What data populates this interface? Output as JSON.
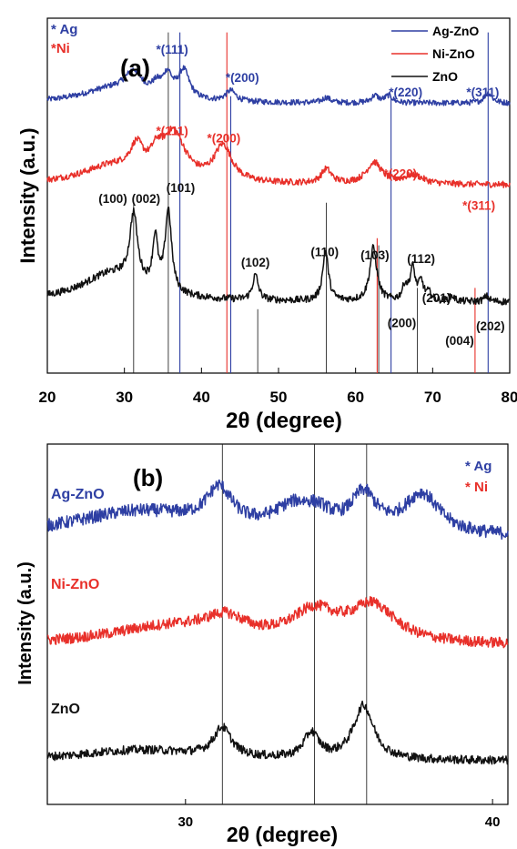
{
  "chart_data": [
    {
      "panel_label": "(a)",
      "type": "line",
      "xlabel": "2θ (degree)",
      "ylabel": "Intensity (a.u.)",
      "xlim": [
        20,
        80
      ],
      "xticks": [
        20,
        30,
        40,
        50,
        60,
        70,
        80
      ],
      "marker_legend": [
        {
          "text": "* Ag",
          "color": "#2e3fa3"
        },
        {
          "text": "*Ni",
          "color": "#e8302a"
        }
      ],
      "legend": {
        "placement": "top-right",
        "entries": [
          {
            "name": "Ag-ZnO",
            "color": "#2e3fa3"
          },
          {
            "name": "Ni-ZnO",
            "color": "#e8302a"
          },
          {
            "name": "ZnO",
            "color": "#111111"
          }
        ]
      },
      "series": [
        {
          "name": "Ag-ZnO",
          "color": "#2e3fa3",
          "baseline": 0.76,
          "noise": 0.008,
          "peaks": [
            [
              28.5,
              0.04,
              5
            ],
            [
              31.2,
              0.06,
              1.3
            ],
            [
              34.2,
              0.03,
              0.8
            ],
            [
              35.6,
              0.06,
              0.7
            ],
            [
              37.7,
              0.08,
              0.9
            ],
            [
              43.8,
              0.03,
              0.8
            ],
            [
              56.2,
              0.015,
              0.6
            ],
            [
              62.5,
              0.02,
              0.6
            ],
            [
              64.3,
              0.02,
              0.6
            ],
            [
              77.2,
              0.03,
              0.6
            ]
          ]
        },
        {
          "name": "Ni-ZnO",
          "color": "#e8302a",
          "baseline": 0.53,
          "noise": 0.009,
          "peaks": [
            [
              28.5,
              0.05,
              5
            ],
            [
              31.6,
              0.07,
              1.0
            ],
            [
              34.2,
              0.05,
              0.9
            ],
            [
              36.4,
              0.13,
              1.8
            ],
            [
              42.8,
              0.1,
              1.4
            ],
            [
              56.2,
              0.04,
              0.8
            ],
            [
              62.4,
              0.06,
              1.2
            ],
            [
              67.5,
              0.025,
              1.5
            ]
          ]
        },
        {
          "name": "ZnO",
          "color": "#111111",
          "baseline": 0.2,
          "noise": 0.01,
          "peaks": [
            [
              28.5,
              0.08,
              5
            ],
            [
              31.2,
              0.19,
              0.6
            ],
            [
              34.0,
              0.14,
              0.4
            ],
            [
              35.7,
              0.23,
              0.5
            ],
            [
              47.0,
              0.07,
              0.45
            ],
            [
              56.1,
              0.14,
              0.45
            ],
            [
              62.3,
              0.15,
              0.55
            ],
            [
              66.4,
              0.04,
              0.4
            ],
            [
              67.4,
              0.09,
              0.4
            ],
            [
              68.5,
              0.05,
              0.4
            ],
            [
              69.5,
              0.02,
              0.4
            ],
            [
              72.5,
              0.015,
              0.4
            ],
            [
              77.0,
              0.015,
              0.4
            ]
          ]
        }
      ],
      "reference_lines": [
        {
          "x": 31.2,
          "color": "#111111",
          "height": 0.48
        },
        {
          "x": 35.7,
          "color": "#111111",
          "height": 0.96
        },
        {
          "x": 37.2,
          "color": "#2e3fa3",
          "height": 0.96
        },
        {
          "x": 43.3,
          "color": "#e8302a",
          "height": 0.96
        },
        {
          "x": 43.8,
          "color": "#2e3fa3",
          "height": 0.78
        },
        {
          "x": 47.3,
          "color": "#111111",
          "height": 0.18
        },
        {
          "x": 56.2,
          "color": "#111111",
          "height": 0.48
        },
        {
          "x": 62.8,
          "color": "#e8302a",
          "height": 0.38
        },
        {
          "x": 63.0,
          "color": "#111111",
          "height": 0.36
        },
        {
          "x": 64.6,
          "color": "#2e3fa3",
          "height": 0.78
        },
        {
          "x": 68.0,
          "color": "#111111",
          "height": 0.24
        },
        {
          "x": 75.5,
          "color": "#e8302a",
          "height": 0.24
        },
        {
          "x": 77.2,
          "color": "#2e3fa3",
          "height": 0.96
        }
      ],
      "annotations": [
        {
          "text": "*(111)",
          "color": "#2e3fa3",
          "x": 36.2,
          "y": 0.9
        },
        {
          "text": "*(200)",
          "color": "#2e3fa3",
          "x": 45.3,
          "y": 0.82
        },
        {
          "text": "*(220)",
          "color": "#2e3fa3",
          "x": 66.5,
          "y": 0.78
        },
        {
          "text": "*(311)",
          "color": "#2e3fa3",
          "x": 76.5,
          "y": 0.78
        },
        {
          "text": "*(111)",
          "color": "#e8302a",
          "x": 36.2,
          "y": 0.67
        },
        {
          "text": "*(200)",
          "color": "#e8302a",
          "x": 42.9,
          "y": 0.65
        },
        {
          "text": "*(220)",
          "color": "#e8302a",
          "x": 65.8,
          "y": 0.55
        },
        {
          "text": "*(311)",
          "color": "#e8302a",
          "x": 76.0,
          "y": 0.46
        },
        {
          "text": "(100)",
          "color": "#111111",
          "x": 28.5,
          "y": 0.48
        },
        {
          "text": "(002)",
          "color": "#111111",
          "x": 32.8,
          "y": 0.48
        },
        {
          "text": "(101)",
          "color": "#111111",
          "x": 37.3,
          "y": 0.51
        },
        {
          "text": "(102)",
          "color": "#111111",
          "x": 47.0,
          "y": 0.3
        },
        {
          "text": "(110)",
          "color": "#111111",
          "x": 56.0,
          "y": 0.33
        },
        {
          "text": "(103)",
          "color": "#111111",
          "x": 62.5,
          "y": 0.32
        },
        {
          "text": "(112)",
          "color": "#111111",
          "x": 68.5,
          "y": 0.31
        },
        {
          "text": "(200)",
          "color": "#111111",
          "x": 66.0,
          "y": 0.13
        },
        {
          "text": "(201)",
          "color": "#111111",
          "x": 70.5,
          "y": 0.2
        },
        {
          "text": "(004)",
          "color": "#111111",
          "x": 73.5,
          "y": 0.08
        },
        {
          "text": "(202)",
          "color": "#111111",
          "x": 77.5,
          "y": 0.12
        }
      ]
    },
    {
      "panel_label": "(b)",
      "type": "line",
      "xlabel": "2θ (degree)",
      "ylabel": "Intensity (a.u.)",
      "xlim": [
        25.5,
        40.5
      ],
      "xticks": [
        30,
        40
      ],
      "marker_legend": [
        {
          "text": "* Ag",
          "color": "#2e3fa3"
        },
        {
          "text": "* Ni",
          "color": "#e8302a"
        }
      ],
      "series_labels": [
        {
          "text": "Ag-ZnO",
          "color": "#2e3fa3"
        },
        {
          "text": "Ni-ZnO",
          "color": "#e8302a"
        },
        {
          "text": "ZnO",
          "color": "#111111"
        }
      ],
      "series": [
        {
          "name": "Ag-ZnO",
          "color": "#2e3fa3",
          "baseline": 0.74,
          "noise": 0.018,
          "peaks": [
            [
              28.5,
              0.07,
              2.8
            ],
            [
              31.1,
              0.1,
              0.5
            ],
            [
              33.5,
              0.06,
              0.8
            ],
            [
              34.3,
              0.04,
              0.6
            ],
            [
              35.8,
              0.1,
              0.5
            ],
            [
              37.7,
              0.11,
              0.7
            ]
          ]
        },
        {
          "name": "Ni-ZnO",
          "color": "#e8302a",
          "baseline": 0.44,
          "noise": 0.015,
          "peaks": [
            [
              29.5,
              0.05,
              2.5
            ],
            [
              31.3,
              0.05,
              0.8
            ],
            [
              34.2,
              0.08,
              0.9
            ],
            [
              36.1,
              0.1,
              0.9
            ]
          ]
        },
        {
          "name": "ZnO",
          "color": "#111111",
          "baseline": 0.12,
          "noise": 0.012,
          "peaks": [
            [
              28.5,
              0.03,
              2.5
            ],
            [
              31.2,
              0.08,
              0.35
            ],
            [
              34.1,
              0.07,
              0.3
            ],
            [
              35.8,
              0.15,
              0.4
            ]
          ]
        }
      ],
      "reference_lines": [
        {
          "x": 31.2,
          "color": "#111111",
          "height": 1.0
        },
        {
          "x": 34.2,
          "color": "#111111",
          "height": 1.0
        },
        {
          "x": 35.9,
          "color": "#111111",
          "height": 1.0
        }
      ]
    }
  ]
}
